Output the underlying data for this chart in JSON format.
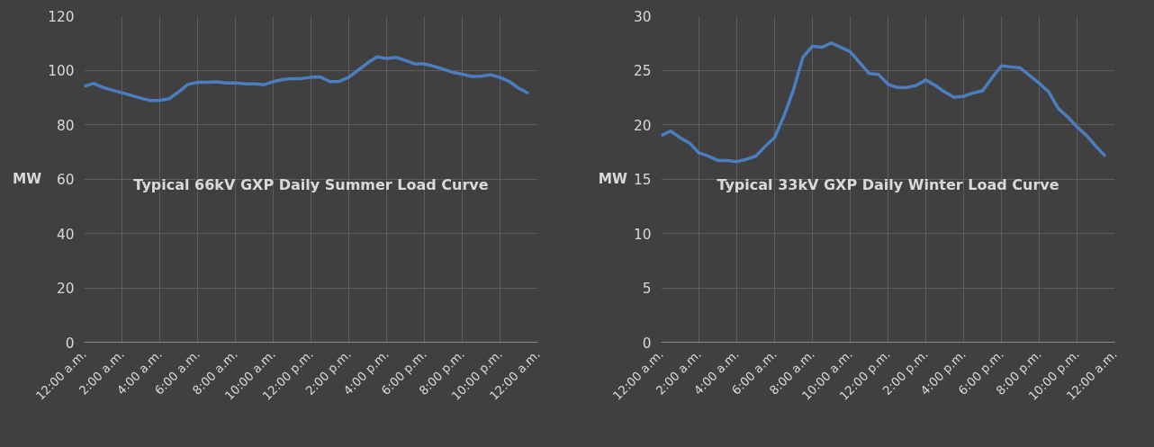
{
  "chart_data": [
    {
      "type": "line",
      "title": "Typical 66kV GXP Daily Summer Load Curve",
      "ylabel": "MW",
      "x": [
        0,
        0.5,
        1,
        1.5,
        2,
        2.5,
        3,
        3.5,
        4,
        4.5,
        5,
        5.5,
        6,
        6.5,
        7,
        7.5,
        8,
        8.5,
        9,
        9.5,
        10,
        10.5,
        11,
        11.5,
        12,
        12.5,
        13,
        13.5,
        14,
        14.5,
        15,
        15.5,
        16,
        16.5,
        17,
        17.5,
        18,
        18.5,
        19,
        19.5,
        20,
        20.5,
        21,
        21.5,
        22,
        22.5,
        23,
        23.5
      ],
      "series": [
        {
          "color": "#4a7ebf",
          "values": [
            94.1,
            95.1,
            93.7,
            92.6,
            91.7,
            90.7,
            89.7,
            88.8,
            88.9,
            89.5,
            92.0,
            94.8,
            95.5,
            95.5,
            95.7,
            95.3,
            95.3,
            95.0,
            95.0,
            94.6,
            95.8,
            96.5,
            96.9,
            96.9,
            97.4,
            97.5,
            95.8,
            95.9,
            97.4,
            100.0,
            102.7,
            104.9,
            104.3,
            104.7,
            103.6,
            102.3,
            102.3,
            101.4,
            100.4,
            99.2,
            98.5,
            97.7,
            97.8,
            98.3,
            97.3,
            95.8,
            93.3,
            91.5
          ]
        }
      ],
      "xlim": [
        0,
        24
      ],
      "xticks": [
        {
          "value": 0,
          "label": "12:00 a.m."
        },
        {
          "value": 2,
          "label": "2:00 a.m."
        },
        {
          "value": 4,
          "label": "4:00 a.m."
        },
        {
          "value": 6,
          "label": "6:00 a.m."
        },
        {
          "value": 8,
          "label": "8:00 a.m."
        },
        {
          "value": 10,
          "label": "10:00 a.m."
        },
        {
          "value": 12,
          "label": "12:00 p.m."
        },
        {
          "value": 14,
          "label": "2:00 p.m."
        },
        {
          "value": 16,
          "label": "4:00 p.m."
        },
        {
          "value": 18,
          "label": "6:00 p.m."
        },
        {
          "value": 20,
          "label": "8:00 p.m."
        },
        {
          "value": 22,
          "label": "10:00 p.m."
        },
        {
          "value": 24,
          "label": "12:00 a.m."
        }
      ],
      "ylim": [
        0,
        120
      ],
      "yticks": [
        0,
        20,
        40,
        60,
        80,
        100,
        120
      ],
      "grid": true,
      "line_style": "solid",
      "marker": "none"
    },
    {
      "type": "line",
      "title": "Typical 33kV GXP Daily Winter Load Curve",
      "ylabel": "MW",
      "x": [
        0,
        0.5,
        1,
        1.5,
        2,
        2.5,
        3,
        3.5,
        4,
        4.5,
        5,
        5.5,
        6,
        6.5,
        7,
        7.5,
        8,
        8.5,
        9,
        9.5,
        10,
        10.5,
        11,
        11.5,
        12,
        12.5,
        13,
        13.5,
        14,
        14.5,
        15,
        15.5,
        16,
        16.5,
        17,
        17.5,
        18,
        18.5,
        19,
        19.5,
        20,
        20.5,
        21,
        21.5,
        22,
        22.5,
        23,
        23.5
      ],
      "series": [
        {
          "color": "#4a7ebf",
          "values": [
            19.0,
            19.4,
            18.8,
            18.3,
            17.4,
            17.1,
            16.7,
            16.7,
            16.6,
            16.8,
            17.1,
            18.0,
            18.8,
            20.8,
            23.2,
            26.2,
            27.2,
            27.1,
            27.5,
            27.1,
            26.7,
            25.7,
            24.7,
            24.6,
            23.7,
            23.4,
            23.4,
            23.6,
            24.1,
            23.6,
            23.0,
            22.5,
            22.6,
            22.9,
            23.1,
            24.3,
            25.4,
            25.3,
            25.2,
            24.5,
            23.8,
            23.0,
            21.5,
            20.7,
            19.8,
            19.0,
            18.0,
            17.1
          ]
        }
      ],
      "xlim": [
        0,
        24
      ],
      "xticks": [
        {
          "value": 0,
          "label": "12:00 a.m."
        },
        {
          "value": 2,
          "label": "2:00 a.m."
        },
        {
          "value": 4,
          "label": "4:00 a.m."
        },
        {
          "value": 6,
          "label": "6:00 a.m."
        },
        {
          "value": 8,
          "label": "8:00 a.m."
        },
        {
          "value": 10,
          "label": "10:00 a.m."
        },
        {
          "value": 12,
          "label": "12:00 p.m."
        },
        {
          "value": 14,
          "label": "2:00 p.m."
        },
        {
          "value": 16,
          "label": "4:00 p.m."
        },
        {
          "value": 18,
          "label": "6:00 p.m."
        },
        {
          "value": 20,
          "label": "8:00 p.m."
        },
        {
          "value": 22,
          "label": "10:00 p.m."
        },
        {
          "value": 24,
          "label": "12:00 a.m."
        }
      ],
      "ylim": [
        0,
        30
      ],
      "yticks": [
        0,
        5,
        10,
        15,
        20,
        25,
        30
      ],
      "grid": true,
      "line_style": "solid",
      "marker": "none"
    }
  ]
}
